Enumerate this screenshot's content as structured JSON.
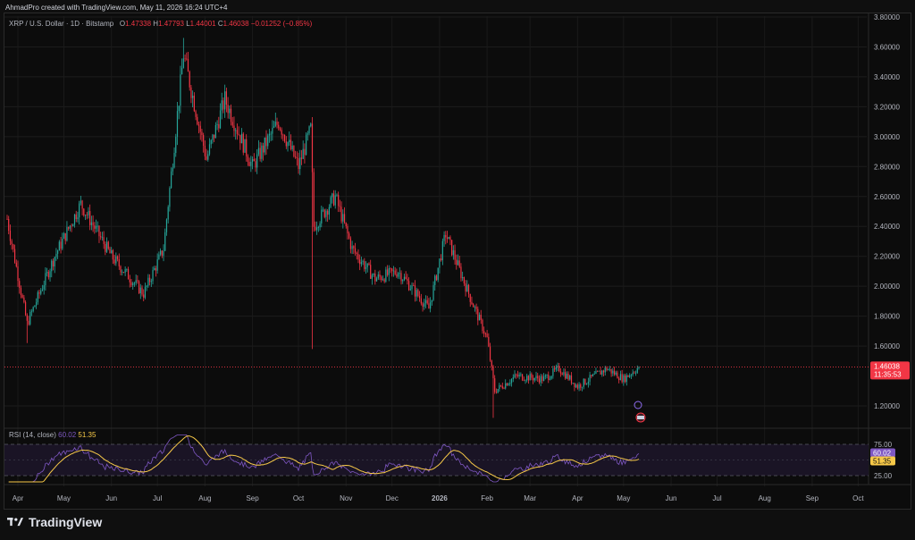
{
  "header": {
    "creator_note": "AhmadPro created with TradingView.com, May 11, 2026 16:24 UTC+4"
  },
  "legend": {
    "symbol": "XRP / U.S. Dollar · 1D · Bitstamp",
    "o_label": "O",
    "o_value": "1.47338",
    "h_label": "H",
    "h_value": "1.47793",
    "l_label": "L",
    "l_value": "1.44001",
    "c_label": "C",
    "c_value": "1.46038",
    "change": "−0.01252 (−0.85%)"
  },
  "price_badge": {
    "price": "1.46038",
    "countdown": "11:35:53"
  },
  "rsi": {
    "title": "RSI (14, close)",
    "value_rsi": "60.02",
    "value_ma": "51.35",
    "levels": [
      "75.00",
      "25.00"
    ]
  },
  "brand": {
    "name": "TradingView"
  },
  "colors": {
    "up": "#26a69a",
    "down": "#f23645",
    "rsi_line": "#7e57c2",
    "rsi_ma": "#f7c948",
    "background": "#0c0c0c"
  },
  "chart_data": [
    {
      "type": "candlestick",
      "title": "XRP / U.S. Dollar · 1D · Bitstamp",
      "y_axis_ticks": [
        "3.80000",
        "3.60000",
        "3.40000",
        "3.20000",
        "3.00000",
        "2.80000",
        "2.60000",
        "2.40000",
        "2.20000",
        "2.00000",
        "1.80000",
        "1.60000",
        "1.20000"
      ],
      "ylim": [
        1.08,
        3.8
      ],
      "x_axis_ticks": [
        "Apr",
        "May",
        "Jun",
        "Jul",
        "Aug",
        "Sep",
        "Oct",
        "Nov",
        "Dec",
        "2026",
        "Feb",
        "Mar",
        "Apr",
        "May",
        "Jun",
        "Jul",
        "Aug",
        "Sep",
        "Oct"
      ],
      "last_price": 1.46038,
      "series": [
        {
          "name": "XRP",
          "approx_close_path": [
            {
              "x": "2025-03-25",
              "y": 2.45
            },
            {
              "x": "2025-04-07",
              "y": 1.75
            },
            {
              "x": "2025-04-25",
              "y": 2.2
            },
            {
              "x": "2025-05-12",
              "y": 2.55
            },
            {
              "x": "2025-06-01",
              "y": 2.2
            },
            {
              "x": "2025-06-22",
              "y": 1.95
            },
            {
              "x": "2025-07-05",
              "y": 2.25
            },
            {
              "x": "2025-07-18",
              "y": 3.55
            },
            {
              "x": "2025-08-02",
              "y": 2.85
            },
            {
              "x": "2025-08-14",
              "y": 3.25
            },
            {
              "x": "2025-09-01",
              "y": 2.8
            },
            {
              "x": "2025-09-18",
              "y": 3.1
            },
            {
              "x": "2025-10-01",
              "y": 2.8
            },
            {
              "x": "2025-10-09",
              "y": 3.05
            },
            {
              "x": "2025-10-11",
              "y": 2.4
            },
            {
              "x": "2025-10-25",
              "y": 2.6
            },
            {
              "x": "2025-11-05",
              "y": 2.25
            },
            {
              "x": "2025-11-20",
              "y": 2.05
            },
            {
              "x": "2025-12-05",
              "y": 2.1
            },
            {
              "x": "2025-12-25",
              "y": 1.85
            },
            {
              "x": "2026-01-05",
              "y": 2.35
            },
            {
              "x": "2026-01-20",
              "y": 1.95
            },
            {
              "x": "2026-02-01",
              "y": 1.65
            },
            {
              "x": "2026-02-06",
              "y": 1.3
            },
            {
              "x": "2026-02-20",
              "y": 1.4
            },
            {
              "x": "2026-03-10",
              "y": 1.38
            },
            {
              "x": "2026-03-20",
              "y": 1.45
            },
            {
              "x": "2026-04-01",
              "y": 1.33
            },
            {
              "x": "2026-04-20",
              "y": 1.45
            },
            {
              "x": "2026-05-01",
              "y": 1.38
            },
            {
              "x": "2026-05-11",
              "y": 1.46
            }
          ]
        }
      ]
    },
    {
      "type": "line",
      "title": "RSI (14, close)",
      "y_axis_ticks": [
        "75.00",
        "25.00"
      ],
      "ylim": [
        15,
        90
      ],
      "series": [
        {
          "name": "RSI",
          "last": 60.02
        },
        {
          "name": "RSI MA",
          "last": 51.35
        }
      ]
    }
  ]
}
